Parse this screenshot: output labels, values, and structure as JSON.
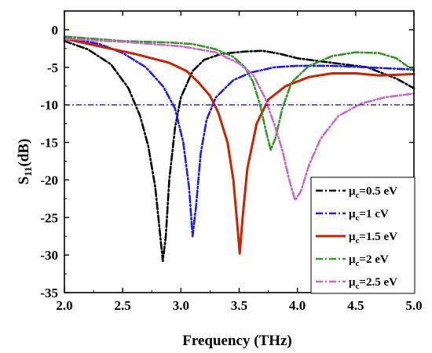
{
  "chart_data": {
    "type": "line",
    "xlabel": "Frequency (THz)",
    "ylabel_main": "S",
    "ylabel_sub": "11",
    "ylabel_tail": "(dB)",
    "xlim": [
      2.0,
      5.0
    ],
    "ylim": [
      -35,
      2.5
    ],
    "xticks": [
      "2.0",
      "2.5",
      "3.0",
      "3.5",
      "4.0",
      "4.5",
      "5.0"
    ],
    "yticks": [
      "0",
      "-5",
      "-10",
      "-15",
      "-20",
      "-25",
      "-30",
      "-35"
    ],
    "grid": false,
    "legend_position": "bottom-right",
    "reference_line": {
      "y": -10,
      "color": "#1a1aff"
    },
    "series": [
      {
        "name_prefix": "μ",
        "name_sub": "c",
        "name_suffix": "=0.5 eV",
        "color": "#000000",
        "dash": "dashdot",
        "points": [
          [
            2.0,
            -1.5
          ],
          [
            2.2,
            -2.6
          ],
          [
            2.4,
            -4.6
          ],
          [
            2.55,
            -7.8
          ],
          [
            2.65,
            -11.5
          ],
          [
            2.72,
            -15.5
          ],
          [
            2.78,
            -21.0
          ],
          [
            2.82,
            -27.0
          ],
          [
            2.845,
            -30.8
          ],
          [
            2.87,
            -27.5
          ],
          [
            2.9,
            -20.0
          ],
          [
            2.95,
            -13.0
          ],
          [
            3.0,
            -9.0
          ],
          [
            3.1,
            -5.5
          ],
          [
            3.2,
            -4.0
          ],
          [
            3.35,
            -3.2
          ],
          [
            3.55,
            -2.9
          ],
          [
            3.7,
            -2.8
          ],
          [
            3.85,
            -3.2
          ],
          [
            4.0,
            -3.8
          ],
          [
            4.3,
            -4.4
          ],
          [
            4.6,
            -5.0
          ],
          [
            4.85,
            -6.5
          ],
          [
            5.0,
            -7.8
          ]
        ]
      },
      {
        "name_prefix": "μ",
        "name_sub": "c",
        "name_suffix": "=1 cV",
        "color": "#1a1aff",
        "dash": "dashdot",
        "points": [
          [
            2.0,
            -1.0
          ],
          [
            2.3,
            -1.9
          ],
          [
            2.5,
            -3.1
          ],
          [
            2.7,
            -5.0
          ],
          [
            2.85,
            -7.6
          ],
          [
            2.95,
            -10.5
          ],
          [
            3.02,
            -15.0
          ],
          [
            3.07,
            -21.0
          ],
          [
            3.1,
            -27.5
          ],
          [
            3.13,
            -23.5
          ],
          [
            3.17,
            -16.5
          ],
          [
            3.22,
            -12.0
          ],
          [
            3.3,
            -9.0
          ],
          [
            3.45,
            -6.7
          ],
          [
            3.6,
            -5.7
          ],
          [
            3.8,
            -5.0
          ],
          [
            4.0,
            -4.8
          ],
          [
            4.3,
            -4.8
          ],
          [
            4.6,
            -5.0
          ],
          [
            4.85,
            -5.2
          ],
          [
            5.0,
            -5.3
          ]
        ]
      },
      {
        "name_prefix": "μ",
        "name_sub": "c",
        "name_suffix": "=1.5 eV",
        "color": "#cc2200",
        "dash": "solid",
        "points": [
          [
            2.0,
            -1.2
          ],
          [
            2.3,
            -2.2
          ],
          [
            2.6,
            -3.2
          ],
          [
            2.9,
            -4.4
          ],
          [
            3.05,
            -5.5
          ],
          [
            3.15,
            -7.0
          ],
          [
            3.25,
            -8.8
          ],
          [
            3.32,
            -11.0
          ],
          [
            3.4,
            -15.0
          ],
          [
            3.45,
            -20.0
          ],
          [
            3.49,
            -27.0
          ],
          [
            3.505,
            -29.8
          ],
          [
            3.53,
            -25.0
          ],
          [
            3.57,
            -18.5
          ],
          [
            3.65,
            -12.5
          ],
          [
            3.75,
            -9.3
          ],
          [
            3.9,
            -7.5
          ],
          [
            4.1,
            -6.3
          ],
          [
            4.3,
            -5.8
          ],
          [
            4.5,
            -5.8
          ],
          [
            4.7,
            -6.1
          ],
          [
            4.85,
            -6.0
          ],
          [
            5.0,
            -5.9
          ]
        ]
      },
      {
        "name_prefix": "μ",
        "name_sub": "c",
        "name_suffix": "=2 eV",
        "color": "#339922",
        "dash": "dashdot",
        "points": [
          [
            2.0,
            -0.9
          ],
          [
            2.5,
            -1.5
          ],
          [
            2.9,
            -1.7
          ],
          [
            3.1,
            -1.9
          ],
          [
            3.3,
            -2.6
          ],
          [
            3.45,
            -3.6
          ],
          [
            3.55,
            -5.0
          ],
          [
            3.62,
            -7.0
          ],
          [
            3.68,
            -10.0
          ],
          [
            3.73,
            -13.5
          ],
          [
            3.77,
            -16.0
          ],
          [
            3.81,
            -14.5
          ],
          [
            3.87,
            -10.5
          ],
          [
            3.95,
            -7.0
          ],
          [
            4.1,
            -4.8
          ],
          [
            4.3,
            -3.5
          ],
          [
            4.5,
            -3.0
          ],
          [
            4.7,
            -3.1
          ],
          [
            4.85,
            -3.8
          ],
          [
            5.0,
            -5.5
          ]
        ]
      },
      {
        "name_prefix": "μ",
        "name_sub": "c",
        "name_suffix": "=2.5 eV",
        "color": "#cc66cc",
        "dash": "dashdot",
        "points": [
          [
            2.0,
            -1.2
          ],
          [
            2.5,
            -1.6
          ],
          [
            3.0,
            -2.2
          ],
          [
            3.3,
            -3.0
          ],
          [
            3.5,
            -4.5
          ],
          [
            3.62,
            -6.0
          ],
          [
            3.72,
            -9.0
          ],
          [
            3.8,
            -12.5
          ],
          [
            3.87,
            -16.0
          ],
          [
            3.93,
            -20.0
          ],
          [
            3.98,
            -22.7
          ],
          [
            4.03,
            -21.5
          ],
          [
            4.1,
            -18.0
          ],
          [
            4.2,
            -14.5
          ],
          [
            4.35,
            -11.5
          ],
          [
            4.55,
            -9.8
          ],
          [
            4.75,
            -9.0
          ],
          [
            5.0,
            -8.5
          ]
        ]
      }
    ]
  }
}
